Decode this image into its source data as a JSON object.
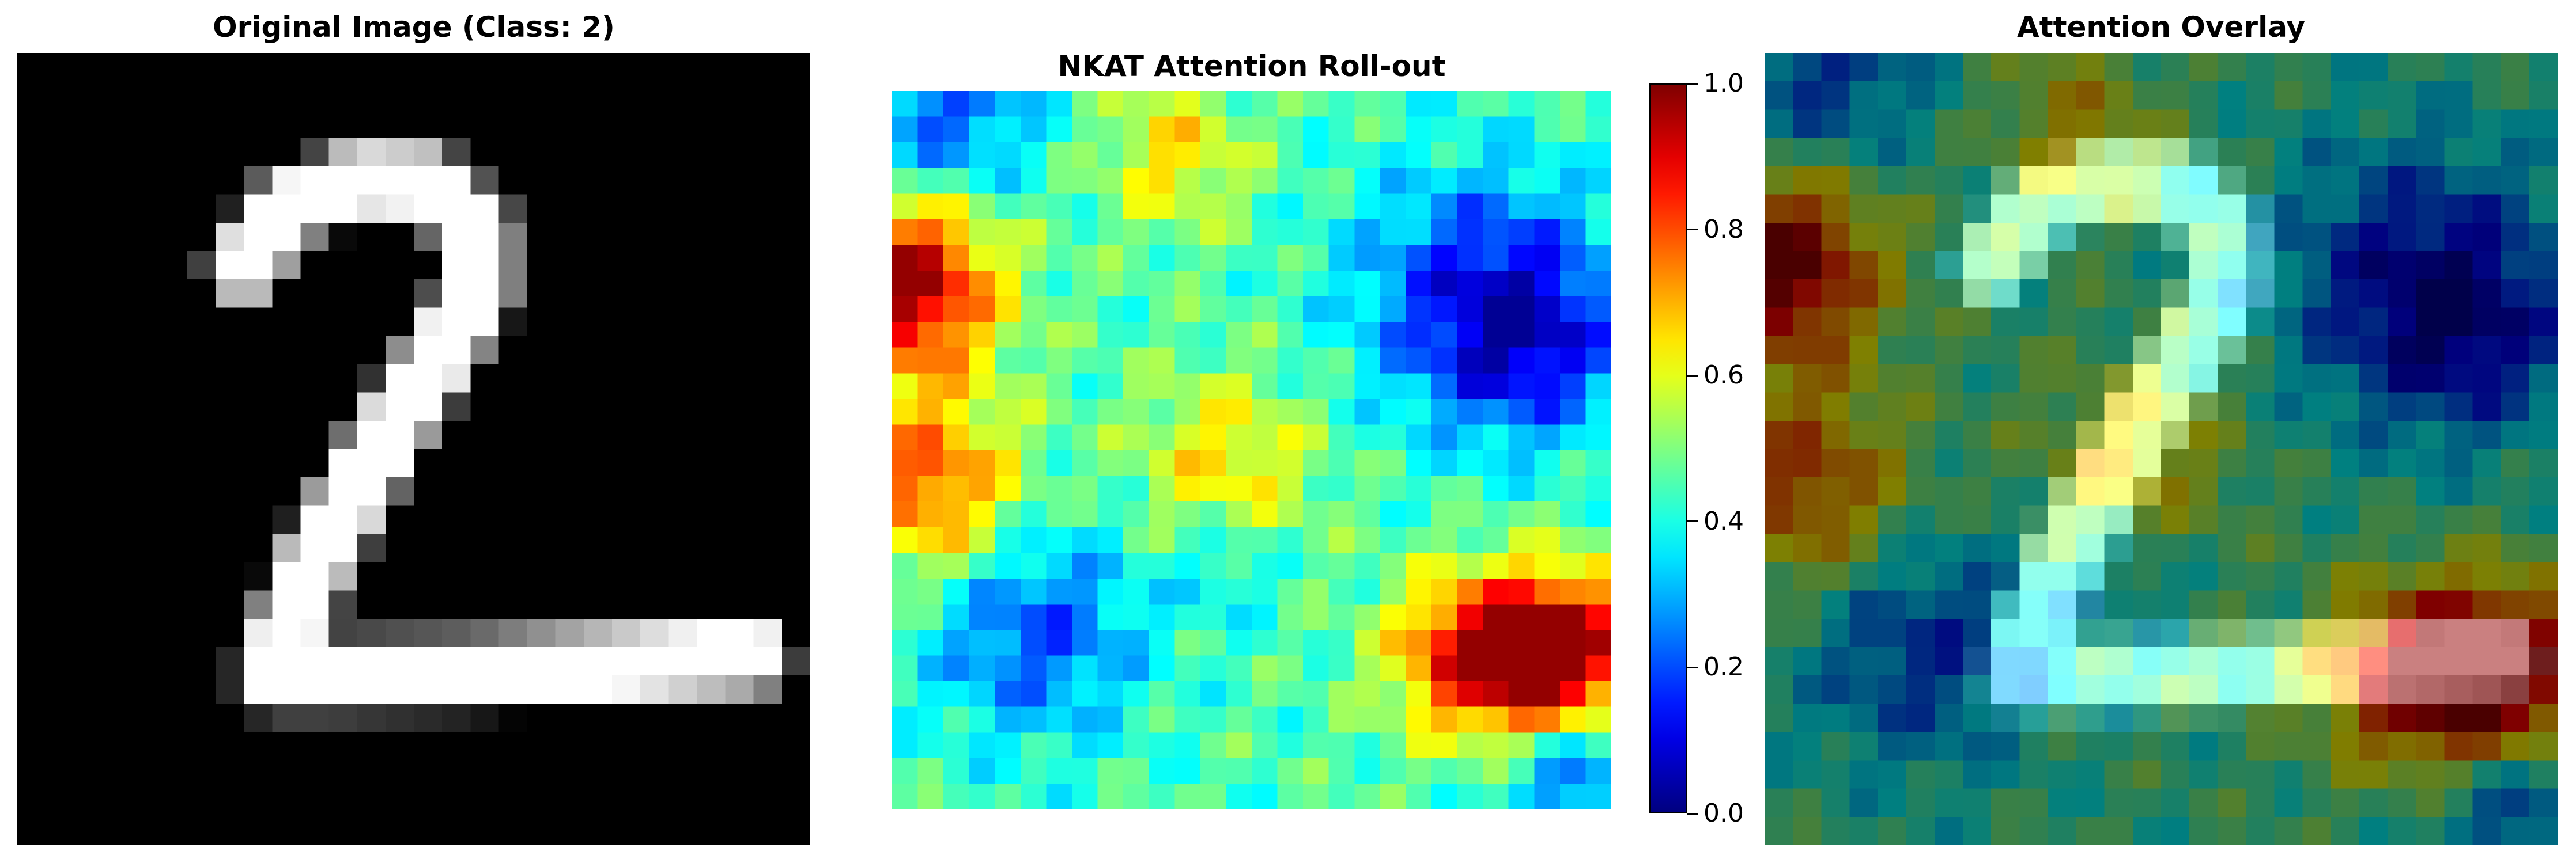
{
  "panels": [
    {
      "title": "Original Image (Class: 2)"
    },
    {
      "title": "NKAT Attention Roll-out"
    },
    {
      "title": "Attention Overlay"
    }
  ],
  "colorbar": {
    "colormap": "jet",
    "range": [
      0.0,
      1.0
    ],
    "ticks": [
      "0.0",
      "0.2",
      "0.4",
      "0.6",
      "0.8",
      "1.0"
    ]
  },
  "colors": {
    "background": "#ffffff",
    "digit_background": "#000000"
  }
}
